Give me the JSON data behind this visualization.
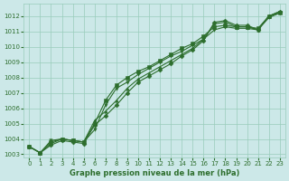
{
  "title": "",
  "xlabel": "Graphe pression niveau de la mer (hPa)",
  "bg_color": "#cce8e8",
  "grid_color": "#99ccbb",
  "line_color": "#2d6e2d",
  "xlim": [
    -0.5,
    23.5
  ],
  "ylim": [
    1002.8,
    1012.8
  ],
  "yticks": [
    1003,
    1004,
    1005,
    1006,
    1007,
    1008,
    1009,
    1010,
    1011,
    1012
  ],
  "xticks": [
    0,
    1,
    2,
    3,
    4,
    5,
    6,
    7,
    8,
    9,
    10,
    11,
    12,
    13,
    14,
    15,
    16,
    17,
    18,
    19,
    20,
    21,
    22,
    23
  ],
  "series": [
    {
      "x": [
        0,
        1,
        2,
        3,
        4,
        5,
        6,
        7,
        8,
        9,
        10,
        11,
        12,
        13,
        14,
        15,
        16,
        17,
        18,
        19,
        20,
        21,
        22,
        23
      ],
      "y": [
        1003.5,
        1003.1,
        1003.6,
        1003.9,
        1003.8,
        1003.7,
        1004.9,
        1005.5,
        1006.2,
        1007.0,
        1007.7,
        1008.1,
        1008.5,
        1008.9,
        1009.4,
        1009.8,
        1010.4,
        1011.6,
        1011.7,
        1011.4,
        1011.4,
        1011.1,
        1012.0,
        1012.3
      ]
    },
    {
      "x": [
        0,
        1,
        2,
        3,
        4,
        5,
        6,
        7,
        8,
        9,
        10,
        11,
        12,
        13,
        14,
        15,
        16,
        17,
        18,
        19,
        20,
        21,
        22,
        23
      ],
      "y": [
        1003.5,
        1003.1,
        1003.7,
        1004.0,
        1003.9,
        1003.8,
        1005.2,
        1005.8,
        1006.5,
        1007.3,
        1007.9,
        1008.3,
        1008.7,
        1009.1,
        1009.5,
        1009.9,
        1010.5,
        1011.5,
        1011.6,
        1011.3,
        1011.3,
        1011.1,
        1012.0,
        1012.3
      ]
    },
    {
      "x": [
        0,
        1,
        2,
        3,
        4,
        5,
        6,
        7,
        8,
        9,
        10,
        11,
        12,
        13,
        14,
        15,
        16,
        17,
        18,
        19,
        20,
        21,
        22,
        23
      ],
      "y": [
        1003.5,
        1003.1,
        1003.8,
        1004.0,
        1003.9,
        1003.8,
        1005.0,
        1006.5,
        1007.5,
        1008.0,
        1008.4,
        1008.7,
        1009.1,
        1009.5,
        1009.9,
        1010.2,
        1010.7,
        1011.3,
        1011.4,
        1011.3,
        1011.3,
        1011.2,
        1012.0,
        1012.2
      ]
    },
    {
      "x": [
        0,
        1,
        2,
        3,
        4,
        5,
        6,
        7,
        8,
        9,
        10,
        11,
        12,
        13,
        14,
        15,
        16,
        17,
        18,
        19,
        20,
        21,
        22,
        23
      ],
      "y": [
        1003.5,
        1003.1,
        1003.9,
        1004.0,
        1003.9,
        1003.8,
        1004.6,
        1006.2,
        1007.3,
        1007.7,
        1008.2,
        1008.6,
        1009.0,
        1009.4,
        1009.7,
        1010.1,
        1010.5,
        1011.1,
        1011.3,
        1011.2,
        1011.2,
        1011.1,
        1011.9,
        1012.2
      ]
    }
  ]
}
